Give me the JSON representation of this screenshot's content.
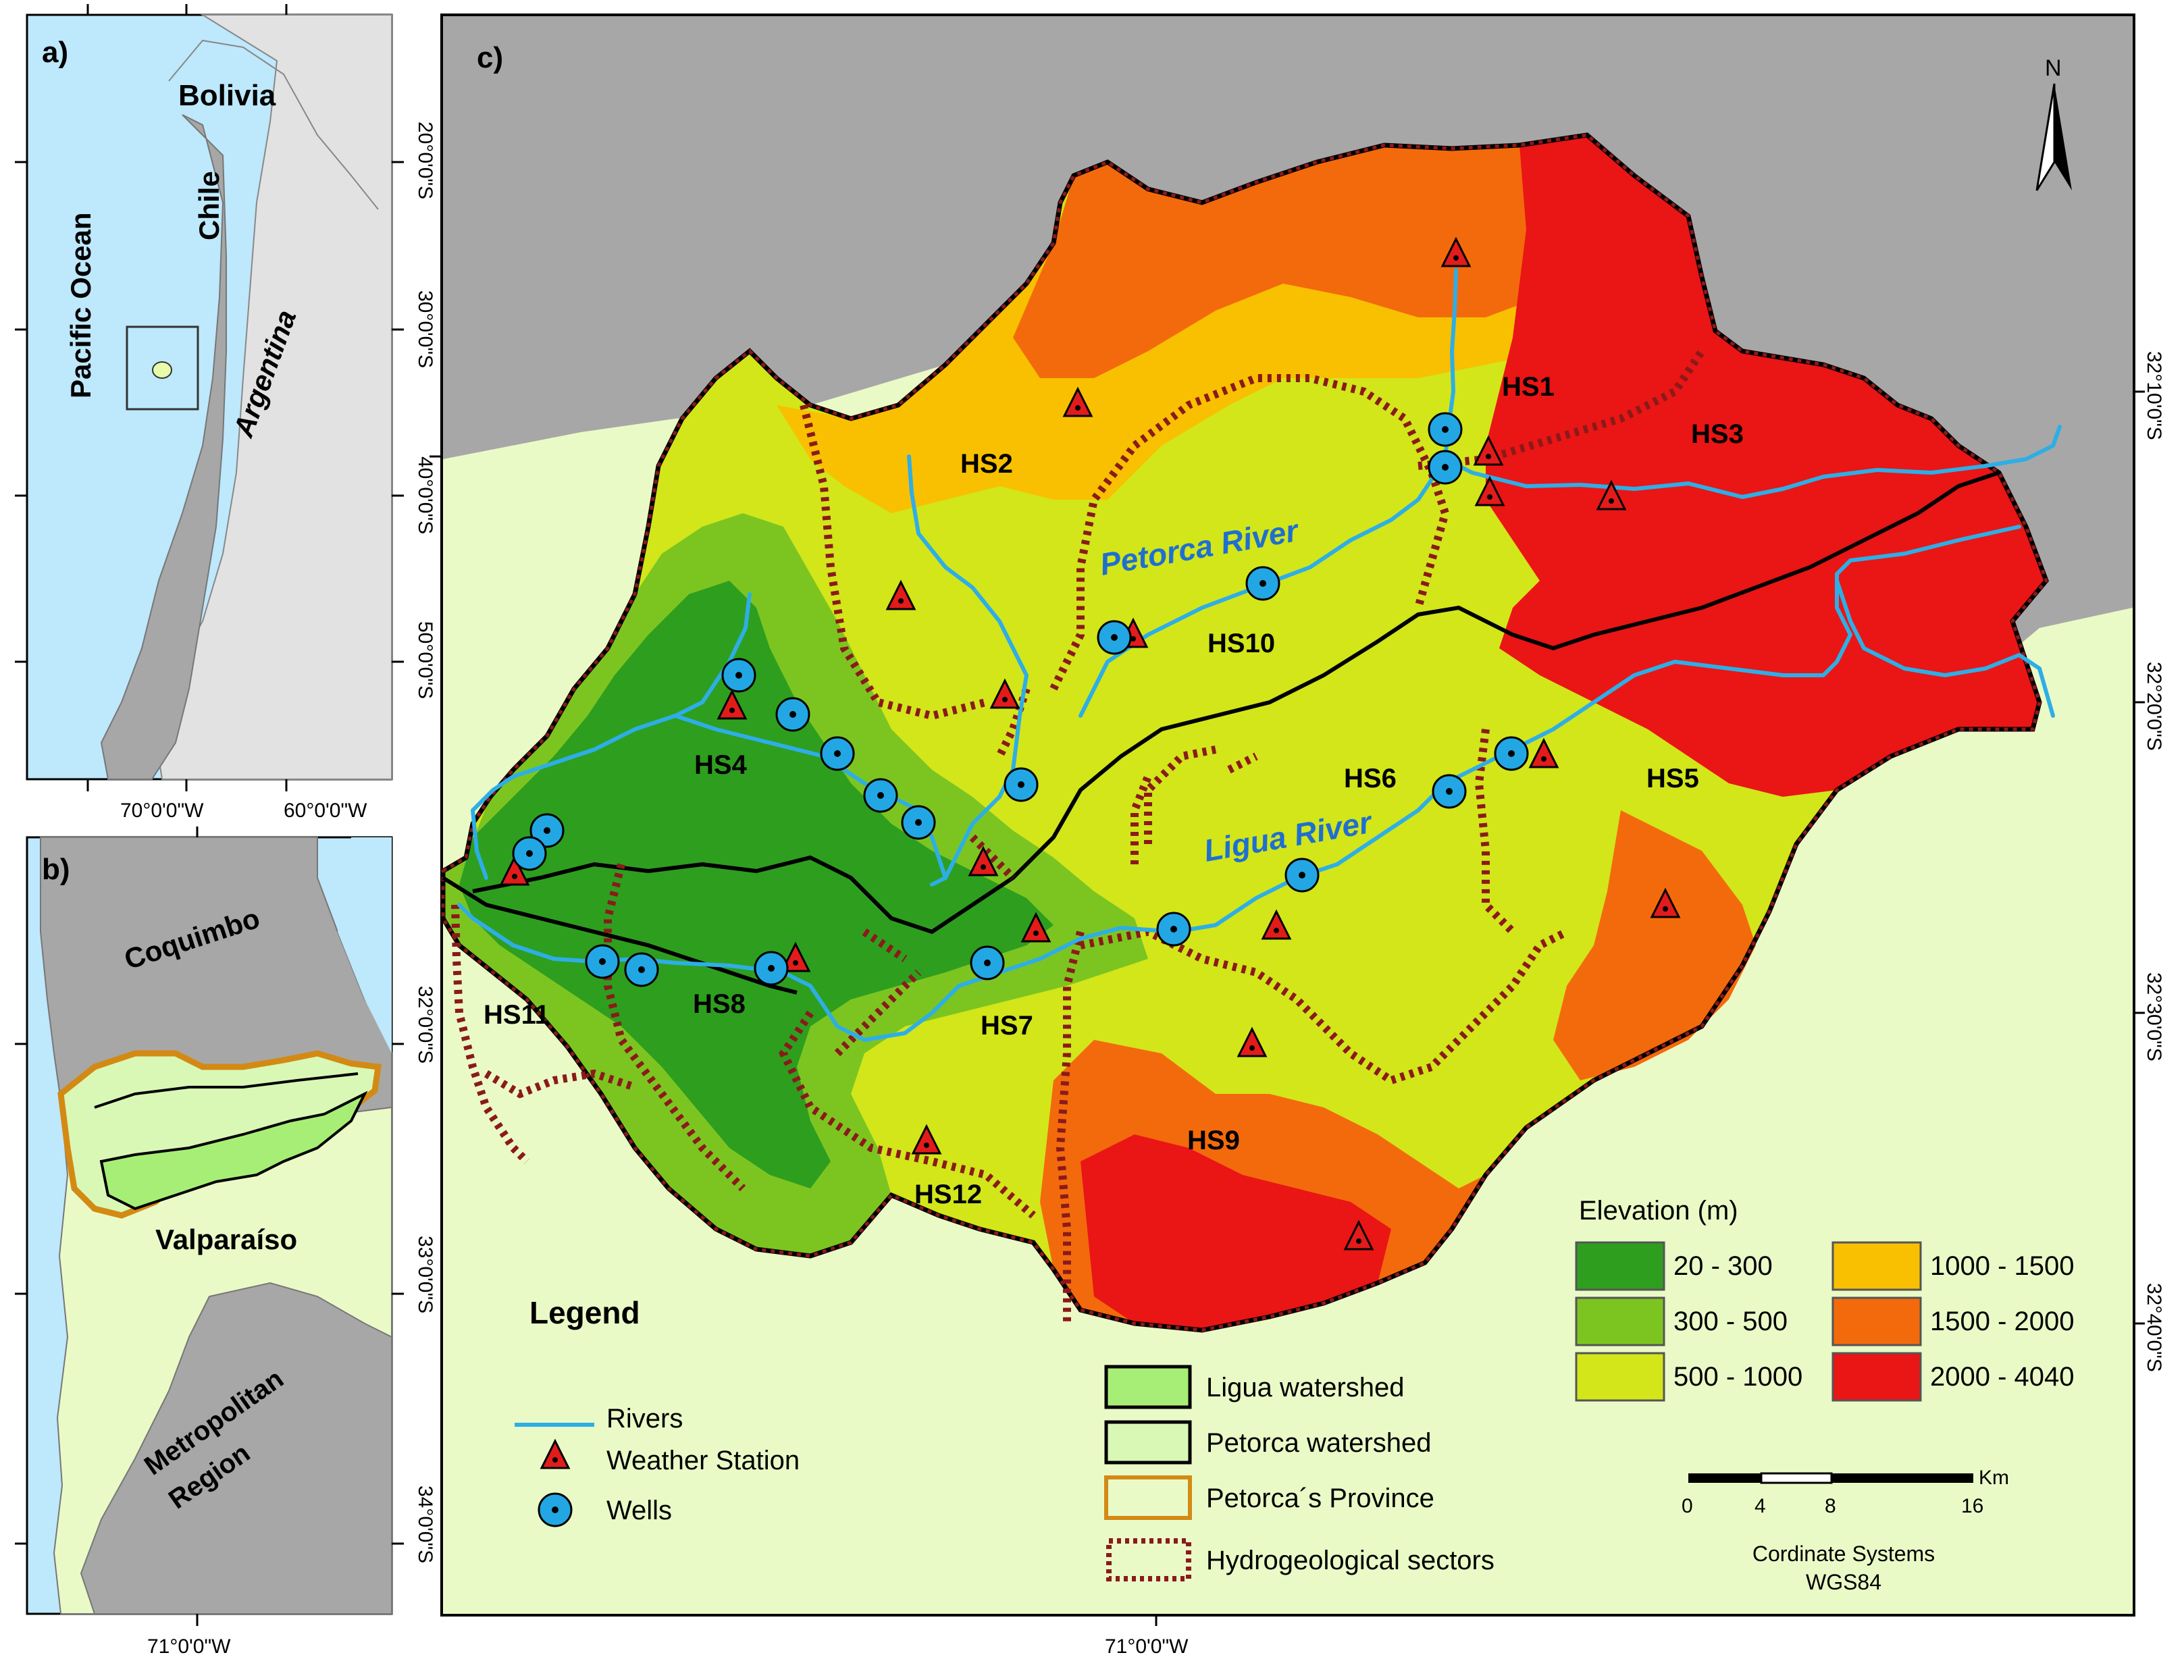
{
  "panel_a": {
    "label": "a)",
    "places": {
      "bolivia": "Bolivia",
      "chile": "Chile",
      "pacific": "Pacific Ocean",
      "argentina": "Argentina"
    },
    "lat_ticks": [
      "20°0'0\"S",
      "30°0'0\"S",
      "40°0'0\"S",
      "50°0'0\"S"
    ],
    "lon_ticks": [
      "70°0'0\"W",
      "60°0'0\"W"
    ]
  },
  "panel_b": {
    "label": "b)",
    "places": {
      "coquimbo": "Coquimbo",
      "valparaiso": "Valparaíso",
      "metro_1": "Metropolitan",
      "metro_2": "Region"
    },
    "lat_ticks": [
      "32°0'0\"S",
      "33°0'0\"S",
      "34°0'0\"S"
    ],
    "lon_tick": "71°0'0\"W"
  },
  "panel_c": {
    "label": "c)",
    "north": "N",
    "rivers": {
      "petorca": "Petorca River",
      "ligua": "Ligua River"
    },
    "sectors": {
      "hs1": "HS1",
      "hs2": "HS2",
      "hs3": "HS3",
      "hs4": "HS4",
      "hs5": "HS5",
      "hs6": "HS6",
      "hs7": "HS7",
      "hs8": "HS8",
      "hs9": "HS9",
      "hs10": "HS10",
      "hs11": "HS11",
      "hs12": "HS12"
    },
    "lat_ticks": [
      "32°10'0\"S",
      "32°20'0\"S",
      "32°30'0\"S",
      "32°40'0\"S"
    ],
    "left_lat_tick": "32°0'0\"S",
    "lon_tick": "71°0'0\"W",
    "legend": {
      "title": "Legend",
      "rivers": "Rivers",
      "weather": "Weather Station",
      "wells": "Wells",
      "ligua_ws": "Ligua watershed",
      "petorca_ws": "Petorca watershed",
      "province": "Petorca´s Province",
      "hydro": "Hydrogeological sectors"
    },
    "elevation": {
      "title": "Elevation (m)",
      "classes": [
        {
          "label": "20 - 300",
          "color": "#2e9e1f"
        },
        {
          "label": "300 - 500",
          "color": "#7cc520"
        },
        {
          "label": "500 - 1000",
          "color": "#d2e61a"
        },
        {
          "label": "1000 - 1500",
          "color": "#f8c000"
        },
        {
          "label": "1500 - 2000",
          "color": "#f36a0c"
        },
        {
          "label": "2000 - 4040",
          "color": "#ea1515"
        }
      ]
    },
    "scale": {
      "unit": "Km",
      "ticks": [
        "0",
        "4",
        "8",
        "16"
      ]
    },
    "crs": {
      "line1": "Cordinate Systems",
      "line2": "WGS84"
    }
  },
  "colors": {
    "ocean": "#bee8fb",
    "land_grey": "#a7a7a7",
    "other_country": "#e2e2e2",
    "valparaiso": "#eafac7",
    "river": "#2eaee6",
    "station": "#e21b1b",
    "well": "#22a7e4",
    "sector_line": "#8b1a1a",
    "province": "#d38a14",
    "ligua_fill": "#a7ee76",
    "petorca_fill": "#d9f8b6"
  }
}
